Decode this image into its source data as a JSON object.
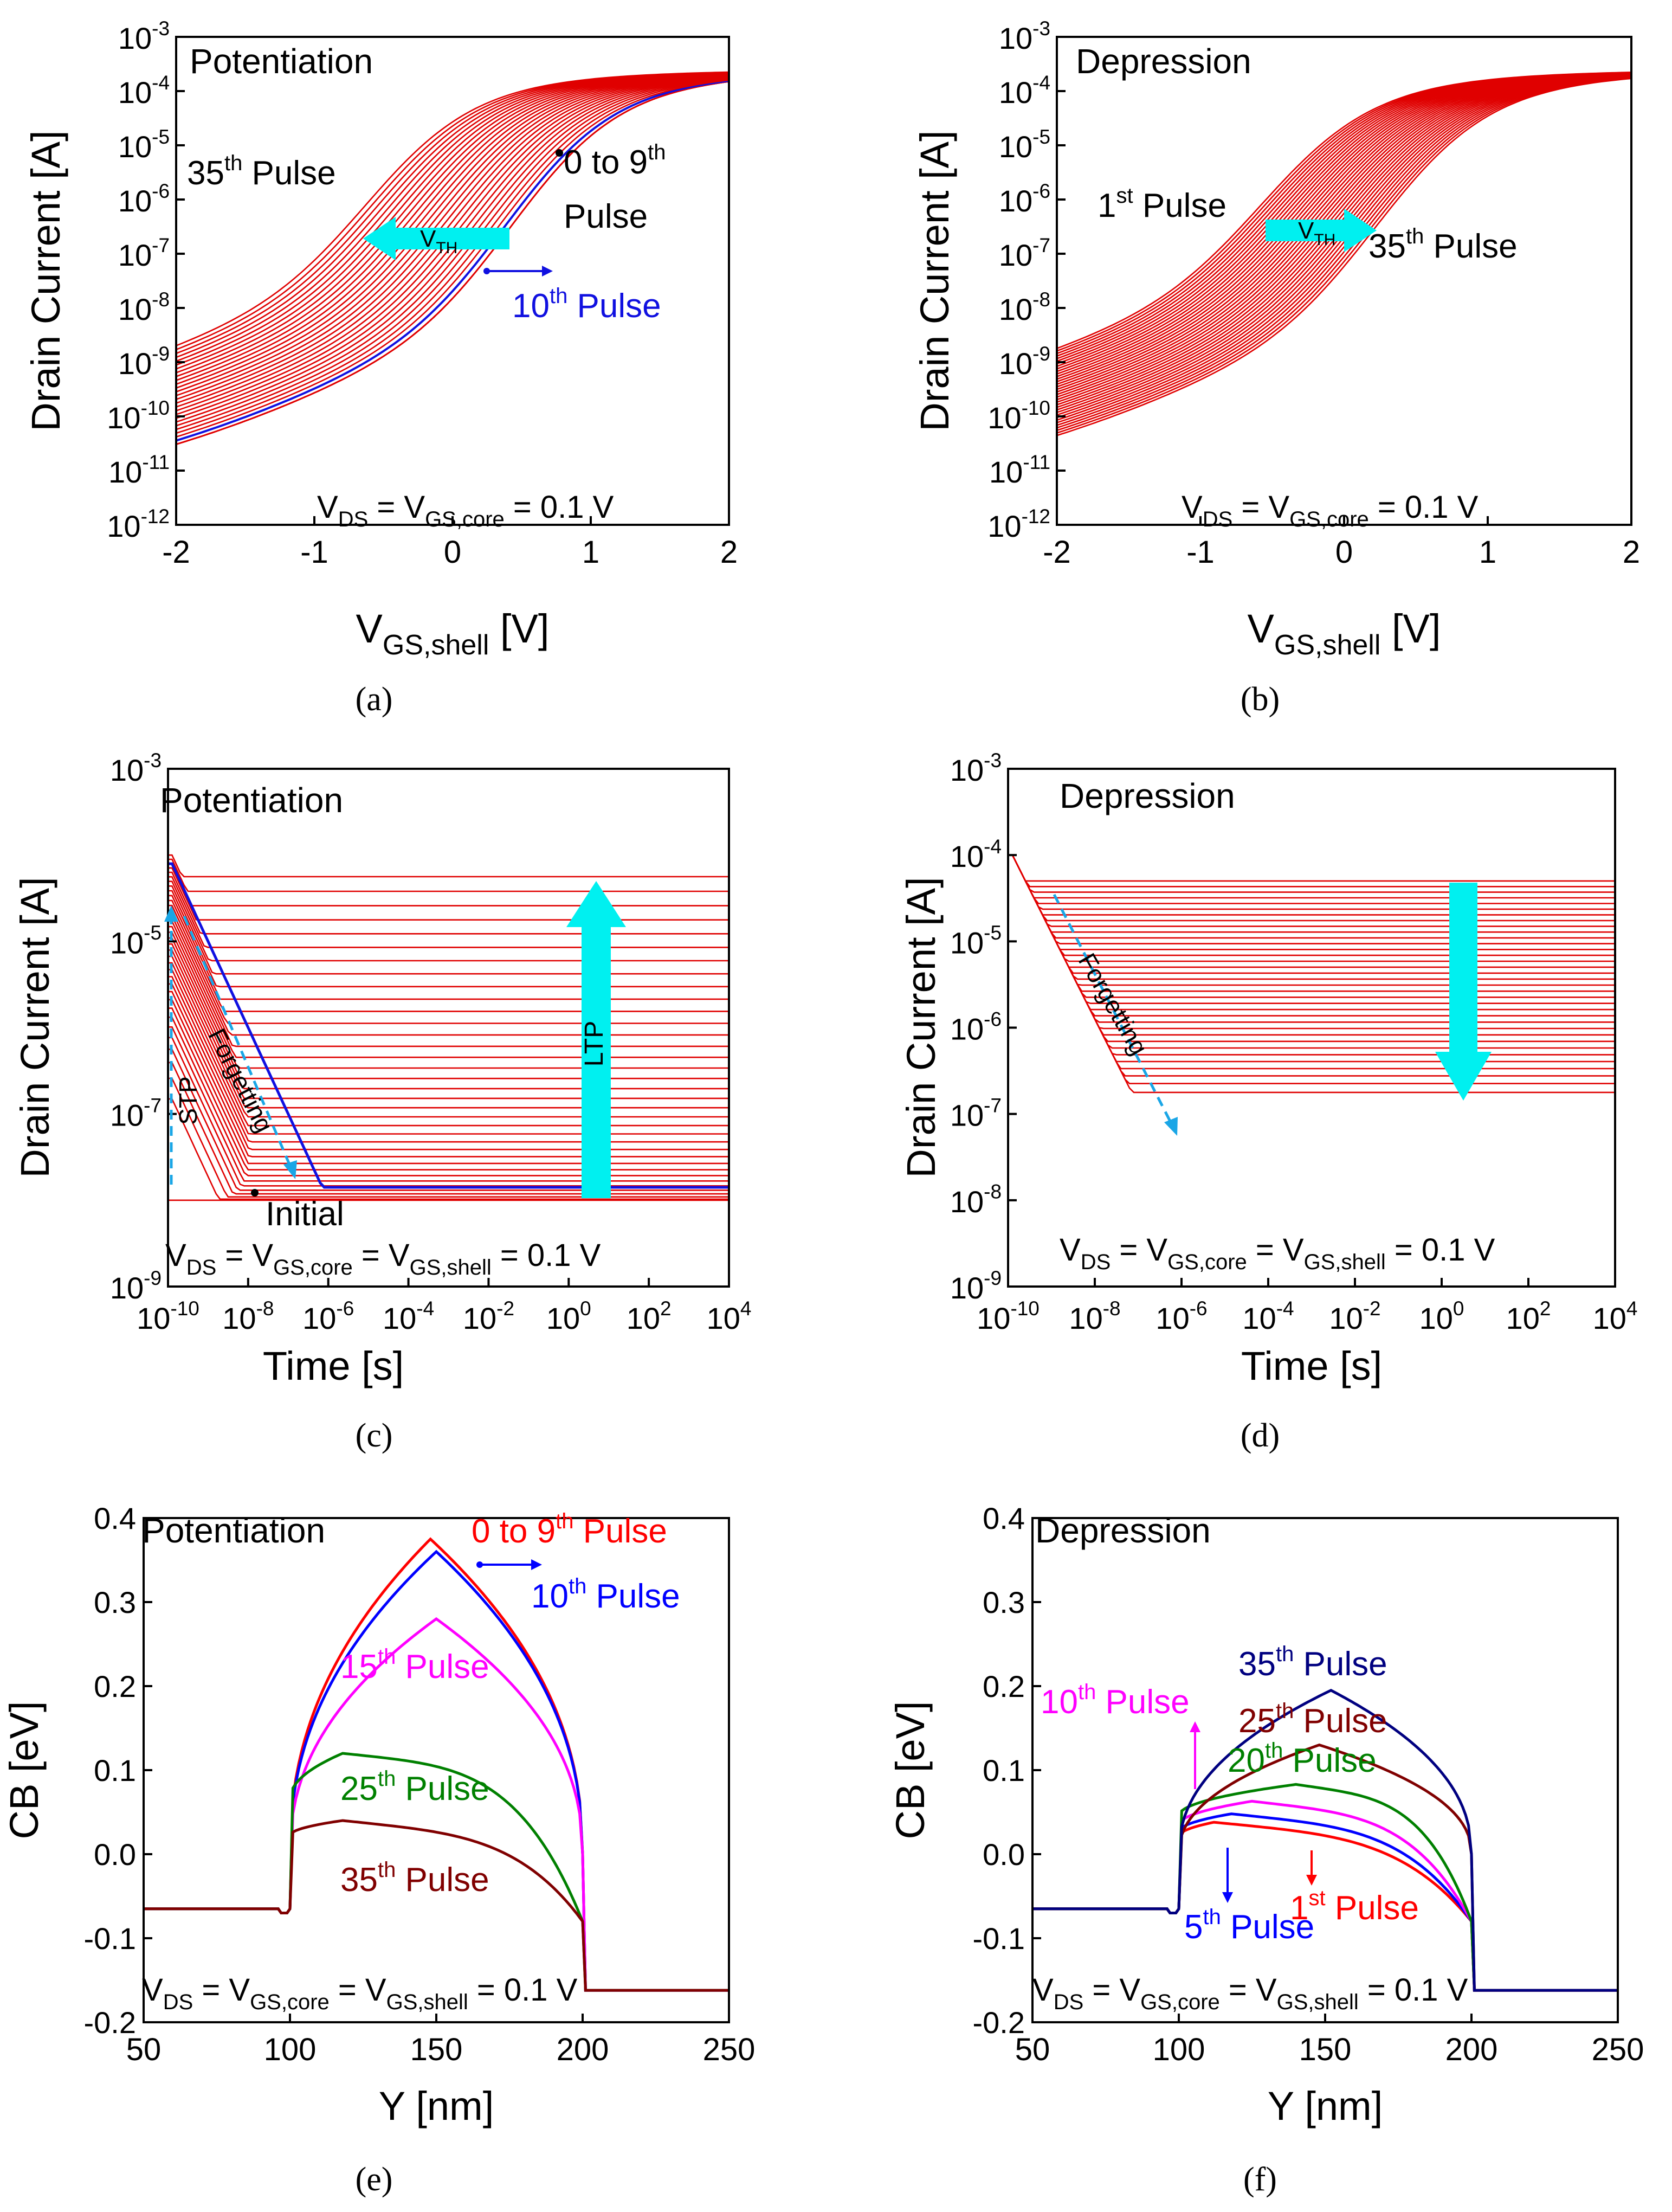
{
  "figure": {
    "panel_labels": [
      "(a)",
      "(b)",
      "(c)",
      "(d)",
      "(e)",
      "(f)"
    ]
  },
  "chart_data": [
    {
      "id": "a",
      "type": "line",
      "title": "Potentiation",
      "xlabel": "V",
      "xlabel_sub": "GS,shell",
      "xlabel_unit": " [V]",
      "ylabel": "Drain Current [A]",
      "xscale": "linear",
      "yscale": "log",
      "xlim": [
        -2,
        2
      ],
      "ylim_exp": [
        -12,
        -3
      ],
      "xticks": [
        "-2",
        "-1",
        "0",
        "1",
        "2"
      ],
      "yticks_exp": [
        "-12",
        "-11",
        "-10",
        "-9",
        "-8",
        "-7",
        "-6",
        "-5",
        "-4",
        "-3"
      ],
      "series_color": "#e00000",
      "highlight_color": "#1010e0",
      "series_count": 36,
      "highlight_index": 10,
      "family_model": {
        "ion_exp": -3.6,
        "ioff_exp": -11.6,
        "vth_start": 0.45,
        "vth_end": -0.6,
        "vth_first_shift_after": 9
      },
      "annotations": {
        "pulse35": "35",
        "pulse35_sup": "th",
        "pulse35_suffix": " Pulse",
        "pulse0to9_a": "0 to 9",
        "pulse0to9_sup": "th",
        "pulse0to9_b": "Pulse",
        "pulse10": "10",
        "pulse10_sup": "th",
        "pulse10_suffix": " Pulse",
        "vth": "V",
        "vth_sub": "TH",
        "bias": "V",
        "bias_sub1": "DS",
        "bias_mid": " = V",
        "bias_sub2": "GS,core",
        "bias_end": " = 0.1 V"
      },
      "arrow_color": "#00f0f0"
    },
    {
      "id": "b",
      "type": "line",
      "title": "Depression",
      "xlabel": "V",
      "xlabel_sub": "GS,shell",
      "xlabel_unit": " [V]",
      "ylabel": "Drain Current [A]",
      "xscale": "linear",
      "yscale": "log",
      "xlim": [
        -2,
        2
      ],
      "ylim_exp": [
        -12,
        -3
      ],
      "xticks": [
        "-2",
        "-1",
        "0",
        "1",
        "2"
      ],
      "yticks_exp": [
        "-12",
        "-11",
        "-10",
        "-9",
        "-8",
        "-7",
        "-6",
        "-5",
        "-4",
        "-3"
      ],
      "series_color": "#e00000",
      "series_count": 35,
      "family_model": {
        "ion_exp": -3.6,
        "ioff_exp": -11.6,
        "vth_start": -0.55,
        "vth_end": 0.25
      },
      "annotations": {
        "pulse1": "1",
        "pulse1_sup": "st",
        "pulse1_suffix": " Pulse",
        "pulse35": "35",
        "pulse35_sup": "th",
        "pulse35_suffix": " Pulse",
        "vth": "V",
        "vth_sub": "TH",
        "bias": "V",
        "bias_sub1": "DS",
        "bias_mid": " = V",
        "bias_sub2": "GS,core",
        "bias_end": " = 0.1 V"
      },
      "arrow_color": "#00f0f0"
    },
    {
      "id": "c",
      "type": "line",
      "title": "Potentiation",
      "xlabel": "Time [s]",
      "ylabel": "Drain Current [A]",
      "xscale": "log",
      "yscale": "log",
      "xlim_exp": [
        -10,
        4
      ],
      "ylim_exp": [
        -9,
        -3
      ],
      "xticks_exp": [
        "-10",
        "-8",
        "-6",
        "-4",
        "-2",
        "0",
        "2",
        "4"
      ],
      "yticks_exp": [
        "-9",
        "-7",
        "-5",
        "-3"
      ],
      "series_color": "#e00000",
      "highlight_color": "#1010e0",
      "series_count": 36,
      "family_model": {
        "start_exp_min": -7.4,
        "start_exp_max": -4.0,
        "final_exp_min": -8.0,
        "final_exp_max": -4.25,
        "decay_slope": -1.0
      },
      "annotations": {
        "initial": "Initial",
        "forgetting": "Forgetting",
        "stp": "STP",
        "ltp": "LTP",
        "bias": "V",
        "bias_sub1": "DS",
        "bias_mid": " = V",
        "bias_sub2": "GS,core",
        "bias_mid2": " = V",
        "bias_sub3": "GS,shell",
        "bias_end": " = 0.1 V"
      },
      "arrow_color": "#00f0f0",
      "dash_color": "#1aa6e6"
    },
    {
      "id": "d",
      "type": "line",
      "title": "Depression",
      "xlabel": "Time [s]",
      "ylabel": "Drain Current [A]",
      "xscale": "log",
      "yscale": "log",
      "xlim_exp": [
        -10,
        4
      ],
      "ylim_exp": [
        -9,
        -3
      ],
      "xticks_exp": [
        "-10",
        "-8",
        "-6",
        "-4",
        "-2",
        "0",
        "2",
        "4"
      ],
      "yticks_exp": [
        "-9",
        "-8",
        "-7",
        "-6",
        "-5",
        "-4",
        "-3"
      ],
      "series_color": "#e00000",
      "series_count": 35,
      "family_model": {
        "start_exp": -4.0,
        "final_exp_min": -6.75,
        "final_exp_max": -4.3
      },
      "annotations": {
        "forgetting": "Forgetting",
        "bias": "V",
        "bias_sub1": "DS",
        "bias_mid": " = V",
        "bias_sub2": "GS,core",
        "bias_mid2": " = V",
        "bias_sub3": "GS,shell",
        "bias_end": " = 0.1 V"
      },
      "arrow_color": "#00f0f0",
      "dash_color": "#1aa6e6"
    },
    {
      "id": "e",
      "type": "line",
      "title": "Potentiation",
      "xlabel": "Y [nm]",
      "ylabel": "CB [eV]",
      "xlim": [
        50,
        250
      ],
      "ylim": [
        -0.2,
        0.4
      ],
      "xticks": [
        "50",
        "100",
        "150",
        "200",
        "250"
      ],
      "yticks": [
        "-0.2",
        "-0.1",
        "0.0",
        "0.1",
        "0.2",
        "0.3",
        "0.4"
      ],
      "left_level": -0.065,
      "right_level": -0.162,
      "series": [
        {
          "name": "0 to 9th Pulse",
          "color": "#ff0000",
          "peak": 0.375,
          "peak_y": 148,
          "shape": "dome"
        },
        {
          "name": "10th Pulse",
          "color": "#0000ff",
          "peak": 0.36,
          "peak_y": 150,
          "shape": "dome"
        },
        {
          "name": "15th Pulse",
          "color": "#ff00ff",
          "peak": 0.28,
          "peak_y": 150,
          "shape": "dome"
        },
        {
          "name": "25th Pulse",
          "color": "#008000",
          "peak": 0.12,
          "peak_y": 118,
          "shape": "left"
        },
        {
          "name": "35th Pulse",
          "color": "#800000",
          "peak": 0.04,
          "peak_y": 118,
          "shape": "left"
        }
      ],
      "annotations": {
        "s0": "0 to 9",
        "s0_sup": "th",
        "s0_suffix": " Pulse",
        "s10": "10",
        "s10_sup": "th",
        "s10_suffix": " Pulse",
        "s15": "15",
        "s15_sup": "th",
        "s15_suffix": " Pulse",
        "s25": "25",
        "s25_sup": "th",
        "s25_suffix": " Pulse",
        "s35": "35",
        "s35_sup": "th",
        "s35_suffix": " Pulse",
        "bias": "V",
        "bias_sub1": "DS",
        "bias_mid": " = V",
        "bias_sub2": "GS,core",
        "bias_mid2": " = V",
        "bias_sub3": "GS,shell",
        "bias_end": " = 0.1 V"
      }
    },
    {
      "id": "f",
      "type": "line",
      "title": "Depression",
      "xlabel": "Y [nm]",
      "ylabel": "CB [eV]",
      "xlim": [
        50,
        250
      ],
      "ylim": [
        -0.2,
        0.4
      ],
      "xticks": [
        "50",
        "100",
        "150",
        "200",
        "250"
      ],
      "yticks": [
        "-0.2",
        "-0.1",
        "0.0",
        "0.1",
        "0.2",
        "0.3",
        "0.4"
      ],
      "left_level": -0.065,
      "right_level": -0.162,
      "series": [
        {
          "name": "1st Pulse",
          "color": "#ff0000",
          "peak": 0.038,
          "peak_y": 112,
          "shape": "left"
        },
        {
          "name": "5th Pulse",
          "color": "#0000ff",
          "peak": 0.048,
          "peak_y": 118,
          "shape": "left"
        },
        {
          "name": "10th Pulse",
          "color": "#ff00ff",
          "peak": 0.063,
          "peak_y": 125,
          "shape": "left"
        },
        {
          "name": "20th Pulse",
          "color": "#008000",
          "peak": 0.083,
          "peak_y": 140,
          "shape": "left"
        },
        {
          "name": "25th Pulse",
          "color": "#800000",
          "peak": 0.13,
          "peak_y": 148,
          "shape": "dome"
        },
        {
          "name": "35th Pulse",
          "color": "#000080",
          "peak": 0.195,
          "peak_y": 152,
          "shape": "dome"
        }
      ],
      "annotations": {
        "s35": "35",
        "s35_sup": "th",
        "s35_suffix": " Pulse",
        "s10": "10",
        "s10_sup": "th",
        "s10_suffix": " Pulse",
        "s25": "25",
        "s25_sup": "th",
        "s25_suffix": " Pulse",
        "s20": "20",
        "s20_sup": "th",
        "s20_suffix": " Pulse",
        "s1": "1",
        "s1_sup": "st",
        "s1_suffix": " Pulse",
        "s5": "5",
        "s5_sup": "th",
        "s5_suffix": " Pulse",
        "bias": "V",
        "bias_sub1": "DS",
        "bias_mid": " = V",
        "bias_sub2": "GS,core",
        "bias_mid2": " = V",
        "bias_sub3": "GS,shell",
        "bias_end": " = 0.1 V"
      }
    }
  ]
}
